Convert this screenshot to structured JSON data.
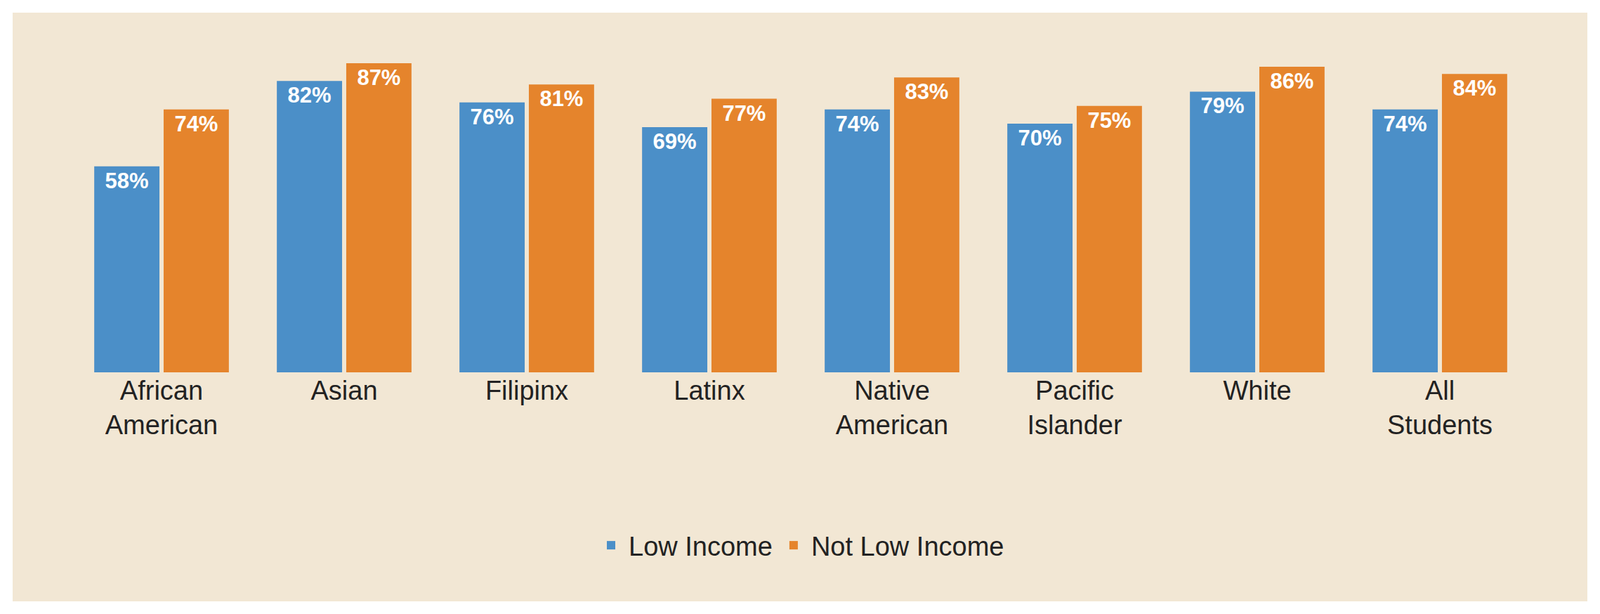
{
  "chart_data": {
    "type": "bar",
    "categories": [
      "African American",
      "Asian",
      "Filipinx",
      "Latinx",
      "Native American",
      "Pacific Islander",
      "White",
      "All Students"
    ],
    "series": [
      {
        "name": "Low Income",
        "color": "#4b8fc8",
        "values": [
          58,
          82,
          76,
          69,
          74,
          70,
          79,
          74
        ],
        "value_labels": [
          "58%",
          "82%",
          "76%",
          "69%",
          "74%",
          "70%",
          "79%",
          "74%"
        ]
      },
      {
        "name": "Not Low Income",
        "color": "#e5842c",
        "values": [
          74,
          87,
          81,
          77,
          83,
          75,
          86,
          84
        ],
        "value_labels": [
          "74%",
          "87%",
          "81%",
          "77%",
          "83%",
          "75%",
          "86%",
          "84%"
        ]
      }
    ],
    "ylim": [
      0,
      87
    ],
    "grid": false,
    "data_labels": true,
    "tick_labels": "x",
    "legend": "bottom"
  }
}
